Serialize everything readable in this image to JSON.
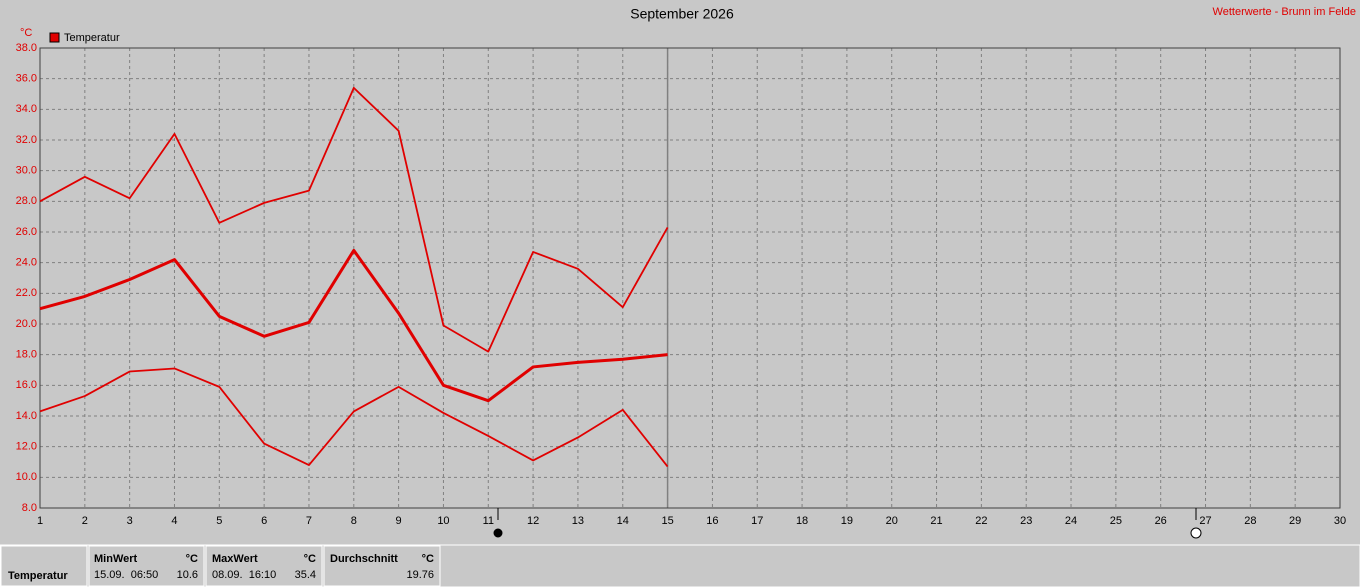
{
  "chart_data": {
    "type": "line",
    "title": "September 2026",
    "subtitle": "Wetterwerte - Brunn im Felde",
    "y_label": "°C",
    "x": [
      1,
      2,
      3,
      4,
      5,
      6,
      7,
      8,
      9,
      10,
      11,
      12,
      13,
      14,
      15
    ],
    "series": [
      {
        "name": "Temperatur",
        "color": "#e00000",
        "values": [
          21.0,
          21.8,
          22.9,
          24.2,
          20.5,
          19.2,
          20.1,
          24.8,
          20.7,
          16.0,
          15.0,
          17.2,
          17.5,
          17.7,
          18.0
        ],
        "max": [
          28.0,
          29.6,
          28.2,
          32.4,
          26.6,
          27.9,
          28.7,
          35.4,
          32.6,
          19.9,
          18.2,
          24.7,
          23.6,
          21.1,
          26.3
        ],
        "min": [
          14.3,
          15.3,
          16.9,
          17.1,
          15.9,
          12.2,
          10.8,
          14.3,
          15.9,
          14.2,
          12.7,
          11.1,
          12.6,
          14.4,
          10.7
        ]
      }
    ],
    "xlim": [
      1,
      30
    ],
    "xticks": [
      1,
      2,
      3,
      4,
      5,
      6,
      7,
      8,
      9,
      10,
      11,
      12,
      13,
      14,
      15,
      16,
      17,
      18,
      19,
      20,
      21,
      22,
      23,
      24,
      25,
      26,
      27,
      28,
      29,
      30
    ],
    "ylim": [
      8,
      38
    ],
    "yticks": [
      {
        "value": 8,
        "label": "8.0"
      },
      {
        "value": 10,
        "label": "10.0"
      },
      {
        "value": 12,
        "label": "12.0"
      },
      {
        "value": 14,
        "label": "14.0"
      },
      {
        "value": 16,
        "label": "16.0"
      },
      {
        "value": 18,
        "label": "18.0"
      },
      {
        "value": 20,
        "label": "20.0"
      },
      {
        "value": 22,
        "label": "22.0"
      },
      {
        "value": 24,
        "label": "24.0"
      },
      {
        "value": 26,
        "label": "26.0"
      },
      {
        "value": 28,
        "label": "28.0"
      },
      {
        "value": 30,
        "label": "30.0"
      },
      {
        "value": 32,
        "label": "32.0"
      },
      {
        "value": 34,
        "label": "34.0"
      },
      {
        "value": 36,
        "label": "36.0"
      },
      {
        "value": 38,
        "label": "38.0"
      }
    ],
    "grid": true
  },
  "footer": {
    "row_label": "Temperatur",
    "min": {
      "header": "MinWert",
      "unit": "°C",
      "time": "15.09.  06:50",
      "value": "10.6"
    },
    "max": {
      "header": "MaxWert",
      "unit": "°C",
      "time": "08.09.  16:10",
      "value": "35.4"
    },
    "avg": {
      "header": "Durchschnitt",
      "unit": "°C",
      "value": "19.76"
    }
  }
}
